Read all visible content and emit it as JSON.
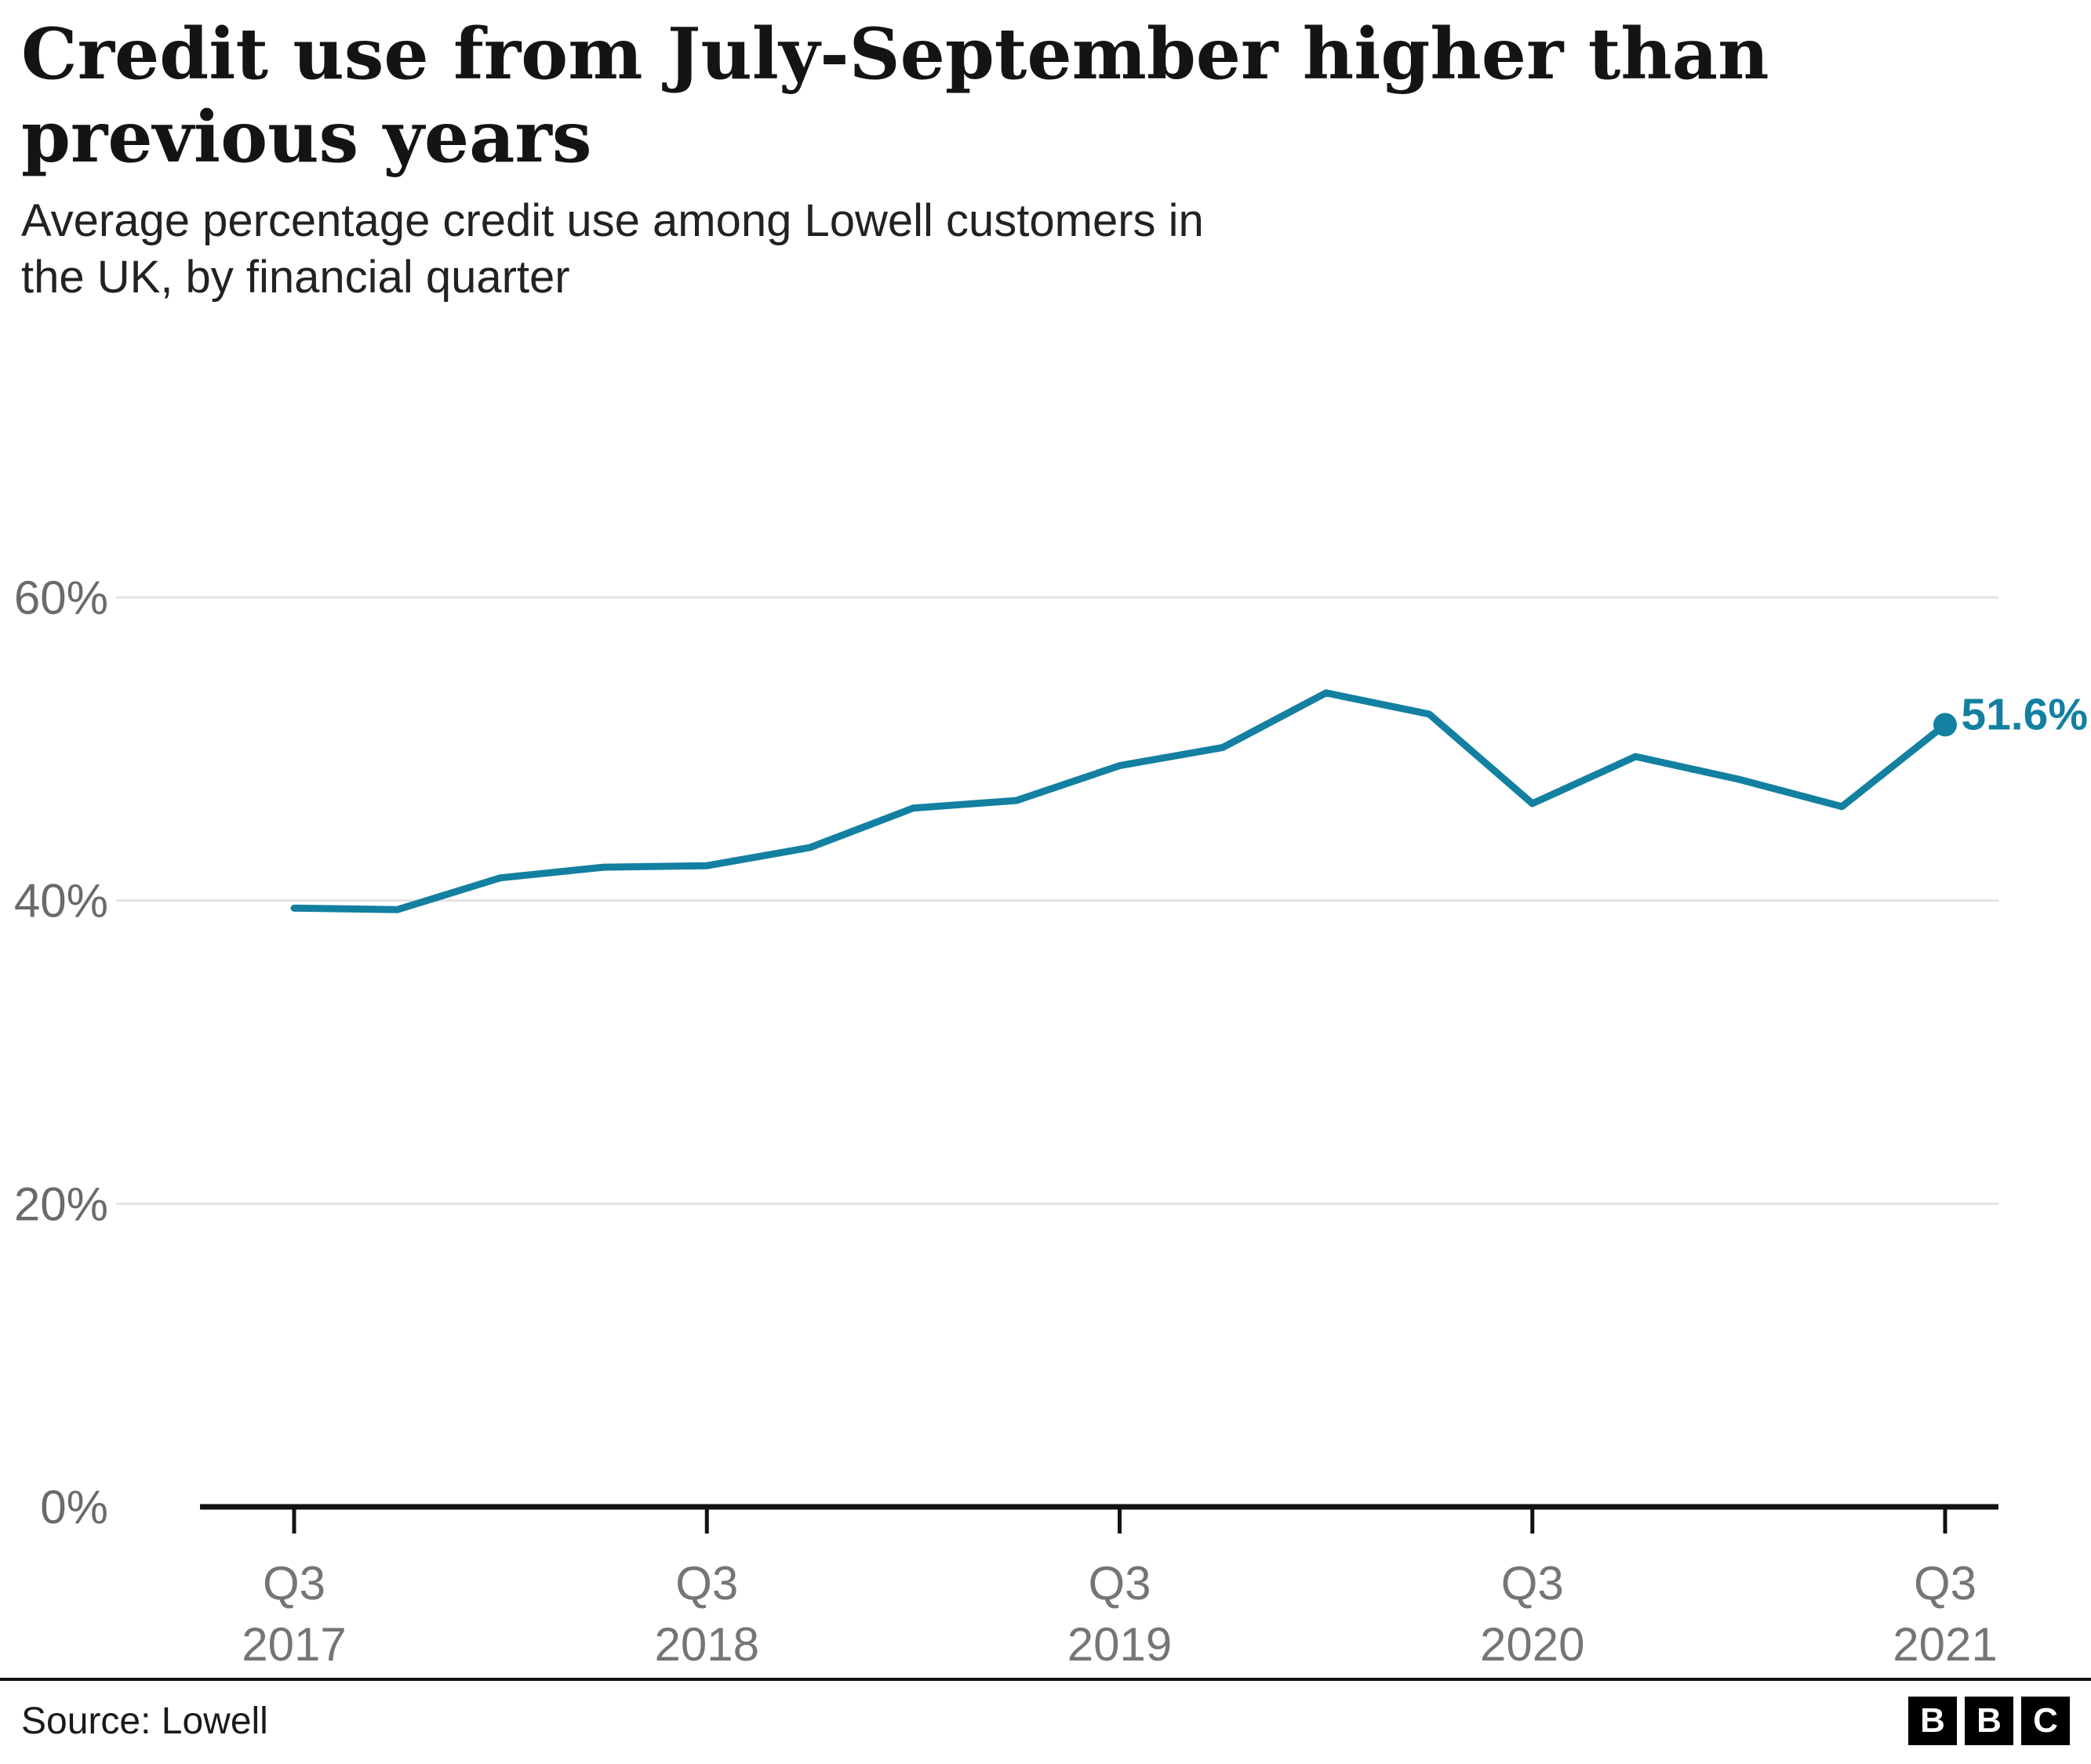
{
  "header": {
    "title": "Credit use from July-September higher than previous years",
    "subtitle": "Average percentage credit use among Lowell customers in the UK, by financial quarter"
  },
  "chart_data": {
    "type": "line",
    "title": "Credit use from July-September higher than previous years",
    "subtitle": "Average percentage credit use among Lowell customers in the UK, by financial quarter",
    "x": [
      "Q3 2017",
      "Q4 2017",
      "Q1 2018",
      "Q2 2018",
      "Q3 2018",
      "Q4 2018",
      "Q1 2019",
      "Q2 2019",
      "Q3 2019",
      "Q4 2019",
      "Q1 2020",
      "Q2 2020",
      "Q3 2020",
      "Q4 2020",
      "Q1 2021",
      "Q2 2021",
      "Q3 2021"
    ],
    "values": [
      39.5,
      39.4,
      41.5,
      42.2,
      42.3,
      43.5,
      46.1,
      46.6,
      48.9,
      50.1,
      53.7,
      52.3,
      46.4,
      49.5,
      48.0,
      46.2,
      51.6
    ],
    "ylim": [
      0,
      60
    ],
    "yticks": [
      0,
      20,
      40,
      60
    ],
    "ytick_labels": [
      "0%",
      "20%",
      "40%",
      "60%"
    ],
    "xticks": [
      {
        "index": 0,
        "line1": "Q3",
        "line2": "2017"
      },
      {
        "index": 4,
        "line1": "Q3",
        "line2": "2018"
      },
      {
        "index": 8,
        "line1": "Q3",
        "line2": "2019"
      },
      {
        "index": 12,
        "line1": "Q3",
        "line2": "2020"
      },
      {
        "index": 16,
        "line1": "Q3",
        "line2": "2021"
      }
    ],
    "annotation": {
      "label": "51.6%",
      "index": 16
    },
    "line_color": "#1380A1",
    "grid": true,
    "legend": "none",
    "xlabel": "",
    "ylabel": ""
  },
  "footer": {
    "source": "Source: Lowell",
    "logo_letters": [
      "B",
      "B",
      "C"
    ]
  }
}
